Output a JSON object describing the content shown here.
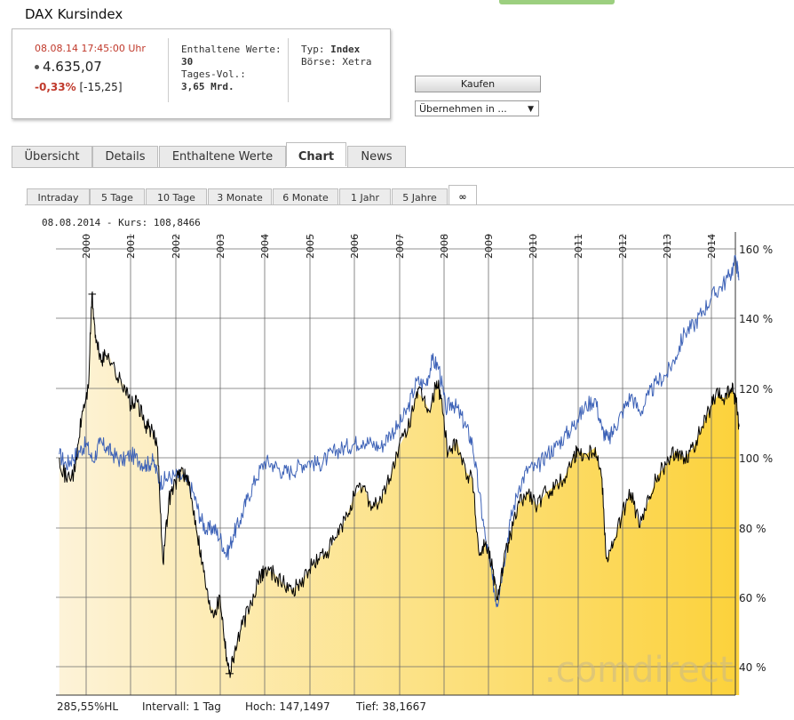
{
  "title": "DAX Kursindex",
  "quote": {
    "datetime": "08.08.14  17:45:00 Uhr",
    "price": "4.635,07",
    "change_pct": "-0,33%",
    "change_abs": "[-15,25]",
    "constituents_label": "Enthaltene Werte:",
    "constituents": "30",
    "volume_label": "Tages-Vol.:",
    "volume": "3,65 Mrd.",
    "type_label": "Typ:",
    "type": "Index",
    "exchange_label": "Börse:",
    "exchange": "Xetra"
  },
  "buy_label": "Kaufen",
  "adopt_select": "Übernehmen in ...",
  "tabs": [
    "Übersicht",
    "Details",
    "Enthaltene Werte",
    "Chart",
    "News"
  ],
  "active_tab": "Chart",
  "ranges": [
    "Intraday",
    "5 Tage",
    "10 Tage",
    "3 Monate",
    "6 Monate",
    "1 Jahr",
    "5 Jahre",
    "∞"
  ],
  "active_range": "∞",
  "kurs_line": "08.08.2014  -  Kurs: 108,8466",
  "footer": {
    "hl": "285,55%HL",
    "interval": "Intervall: 1 Tag",
    "high": "Hoch: 147,1497",
    "low": "Tief: 38,1667"
  },
  "watermark": ".comdirect",
  "colors": {
    "accent_red": "#c0392b",
    "series_black": "#000000",
    "series_blue": "#3d62b7",
    "area_light": "#fdf3d8",
    "area_dark": "#fcd23b"
  },
  "chart_data": {
    "type": "area",
    "x_labels": [
      "2000",
      "2001",
      "2002",
      "2003",
      "2004",
      "2005",
      "2006",
      "2007",
      "2008",
      "2009",
      "2010",
      "2011",
      "2012",
      "2013",
      "2014"
    ],
    "y_ticks": [
      "160 %",
      "140 %",
      "120 %",
      "100 %",
      "80 %",
      "60 %",
      "40 %"
    ],
    "ylim": [
      32,
      161
    ],
    "xlim": [
      1999.4,
      2014.62
    ],
    "grid": true,
    "series": [
      {
        "color": "#000000",
        "fill": true,
        "points": [
          [
            1999.4,
            100
          ],
          [
            1999.55,
            94
          ],
          [
            1999.75,
            96
          ],
          [
            1999.9,
            112
          ],
          [
            2000.05,
            120
          ],
          [
            2000.13,
            147
          ],
          [
            2000.22,
            133
          ],
          [
            2000.35,
            128
          ],
          [
            2000.5,
            130
          ],
          [
            2000.7,
            123
          ],
          [
            2000.85,
            121
          ],
          [
            2001.0,
            115
          ],
          [
            2001.15,
            116
          ],
          [
            2001.3,
            110
          ],
          [
            2001.45,
            108
          ],
          [
            2001.6,
            103
          ],
          [
            2001.72,
            70
          ],
          [
            2001.85,
            88
          ],
          [
            2002.0,
            93
          ],
          [
            2002.15,
            97
          ],
          [
            2002.3,
            92
          ],
          [
            2002.45,
            82
          ],
          [
            2002.6,
            70
          ],
          [
            2002.75,
            58
          ],
          [
            2002.88,
            56
          ],
          [
            2003.0,
            60
          ],
          [
            2003.1,
            48
          ],
          [
            2003.2,
            38
          ],
          [
            2003.32,
            44
          ],
          [
            2003.5,
            52
          ],
          [
            2003.7,
            58
          ],
          [
            2003.9,
            66
          ],
          [
            2004.0,
            68
          ],
          [
            2004.2,
            67
          ],
          [
            2004.4,
            64
          ],
          [
            2004.6,
            62
          ],
          [
            2004.8,
            64
          ],
          [
            2005.0,
            68
          ],
          [
            2005.2,
            71
          ],
          [
            2005.4,
            73
          ],
          [
            2005.6,
            77
          ],
          [
            2005.8,
            82
          ],
          [
            2006.0,
            89
          ],
          [
            2006.2,
            92
          ],
          [
            2006.4,
            86
          ],
          [
            2006.6,
            88
          ],
          [
            2006.8,
            94
          ],
          [
            2007.0,
            103
          ],
          [
            2007.2,
            108
          ],
          [
            2007.4,
            119
          ],
          [
            2007.55,
            117
          ],
          [
            2007.7,
            113
          ],
          [
            2007.85,
            122
          ],
          [
            2007.95,
            117
          ],
          [
            2008.1,
            101
          ],
          [
            2008.3,
            105
          ],
          [
            2008.5,
            96
          ],
          [
            2008.65,
            94
          ],
          [
            2008.8,
            72
          ],
          [
            2008.95,
            76
          ],
          [
            2009.1,
            68
          ],
          [
            2009.2,
            60
          ],
          [
            2009.35,
            70
          ],
          [
            2009.5,
            78
          ],
          [
            2009.7,
            87
          ],
          [
            2009.9,
            90
          ],
          [
            2010.1,
            86
          ],
          [
            2010.3,
            90
          ],
          [
            2010.5,
            92
          ],
          [
            2010.7,
            94
          ],
          [
            2010.9,
            100
          ],
          [
            2011.0,
            102
          ],
          [
            2011.2,
            101
          ],
          [
            2011.4,
            103
          ],
          [
            2011.55,
            94
          ],
          [
            2011.65,
            71
          ],
          [
            2011.8,
            75
          ],
          [
            2012.0,
            84
          ],
          [
            2012.2,
            90
          ],
          [
            2012.4,
            80
          ],
          [
            2012.6,
            88
          ],
          [
            2012.8,
            95
          ],
          [
            2013.0,
            98
          ],
          [
            2013.2,
            102
          ],
          [
            2013.4,
            100
          ],
          [
            2013.6,
            103
          ],
          [
            2013.8,
            109
          ],
          [
            2014.0,
            115
          ],
          [
            2014.15,
            118
          ],
          [
            2014.3,
            117
          ],
          [
            2014.45,
            120
          ],
          [
            2014.55,
            117
          ],
          [
            2014.62,
            109
          ]
        ]
      },
      {
        "color": "#3d62b7",
        "fill": false,
        "points": [
          [
            1999.4,
            101
          ],
          [
            1999.55,
            98
          ],
          [
            1999.7,
            100
          ],
          [
            1999.85,
            102
          ],
          [
            2000.0,
            104
          ],
          [
            2000.15,
            99
          ],
          [
            2000.3,
            104
          ],
          [
            2000.45,
            103
          ],
          [
            2000.6,
            101
          ],
          [
            2000.8,
            99
          ],
          [
            2001.0,
            101
          ],
          [
            2001.2,
            99
          ],
          [
            2001.35,
            98
          ],
          [
            2001.5,
            99
          ],
          [
            2001.65,
            93
          ],
          [
            2001.8,
            94
          ],
          [
            2002.0,
            95
          ],
          [
            2002.2,
            94
          ],
          [
            2002.4,
            90
          ],
          [
            2002.55,
            83
          ],
          [
            2002.7,
            79
          ],
          [
            2002.85,
            80
          ],
          [
            2003.0,
            77
          ],
          [
            2003.15,
            72
          ],
          [
            2003.3,
            78
          ],
          [
            2003.45,
            82
          ],
          [
            2003.6,
            88
          ],
          [
            2003.8,
            94
          ],
          [
            2004.0,
            99
          ],
          [
            2004.2,
            98
          ],
          [
            2004.4,
            96
          ],
          [
            2004.6,
            96
          ],
          [
            2004.8,
            98
          ],
          [
            2005.0,
            99
          ],
          [
            2005.2,
            98
          ],
          [
            2005.4,
            100
          ],
          [
            2005.6,
            102
          ],
          [
            2005.8,
            103
          ],
          [
            2006.0,
            104
          ],
          [
            2006.2,
            105
          ],
          [
            2006.4,
            104
          ],
          [
            2006.6,
            103
          ],
          [
            2006.8,
            107
          ],
          [
            2007.0,
            109
          ],
          [
            2007.2,
            114
          ],
          [
            2007.4,
            122
          ],
          [
            2007.6,
            121
          ],
          [
            2007.75,
            128
          ],
          [
            2007.9,
            126
          ],
          [
            2008.05,
            114
          ],
          [
            2008.2,
            116
          ],
          [
            2008.35,
            113
          ],
          [
            2008.5,
            109
          ],
          [
            2008.65,
            104
          ],
          [
            2008.8,
            90
          ],
          [
            2008.95,
            76
          ],
          [
            2009.1,
            65
          ],
          [
            2009.2,
            58
          ],
          [
            2009.35,
            70
          ],
          [
            2009.5,
            82
          ],
          [
            2009.7,
            92
          ],
          [
            2009.9,
            97
          ],
          [
            2010.1,
            97
          ],
          [
            2010.3,
            101
          ],
          [
            2010.5,
            103
          ],
          [
            2010.7,
            106
          ],
          [
            2010.9,
            109
          ],
          [
            2011.0,
            111
          ],
          [
            2011.2,
            115
          ],
          [
            2011.4,
            117
          ],
          [
            2011.55,
            108
          ],
          [
            2011.7,
            105
          ],
          [
            2011.85,
            109
          ],
          [
            2012.0,
            113
          ],
          [
            2012.2,
            118
          ],
          [
            2012.4,
            113
          ],
          [
            2012.6,
            118
          ],
          [
            2012.8,
            122
          ],
          [
            2013.0,
            124
          ],
          [
            2013.2,
            129
          ],
          [
            2013.4,
            136
          ],
          [
            2013.6,
            138
          ],
          [
            2013.8,
            142
          ],
          [
            2014.0,
            146
          ],
          [
            2014.2,
            149
          ],
          [
            2014.4,
            152
          ],
          [
            2014.55,
            157
          ],
          [
            2014.62,
            151
          ]
        ]
      }
    ]
  }
}
